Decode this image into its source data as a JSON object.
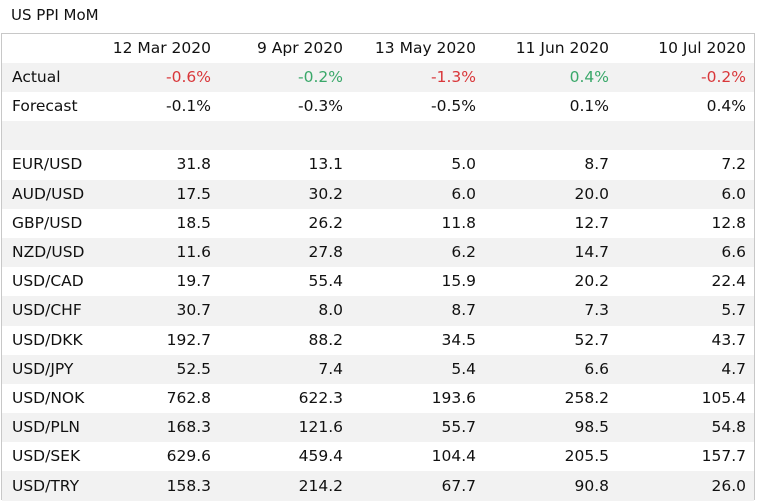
{
  "title": "US PPI MoM",
  "columns": [
    "12 Mar 2020",
    "9 Apr 2020",
    "13 May 2020",
    "11 Jun 2020",
    "10 Jul 2020"
  ],
  "actual": {
    "label": "Actual",
    "values": [
      "-0.6%",
      "-0.2%",
      "-1.3%",
      "0.4%",
      "-0.2%"
    ],
    "colors": [
      "red",
      "green",
      "red",
      "green",
      "red"
    ]
  },
  "forecast": {
    "label": "Forecast",
    "values": [
      "-0.1%",
      "-0.3%",
      "-0.5%",
      "0.1%",
      "0.4%"
    ]
  },
  "pairs": [
    {
      "label": "EUR/USD",
      "values": [
        "31.8",
        "13.1",
        "5.0",
        "8.7",
        "7.2"
      ]
    },
    {
      "label": "AUD/USD",
      "values": [
        "17.5",
        "30.2",
        "6.0",
        "20.0",
        "6.0"
      ]
    },
    {
      "label": "GBP/USD",
      "values": [
        "18.5",
        "26.2",
        "11.8",
        "12.7",
        "12.8"
      ]
    },
    {
      "label": "NZD/USD",
      "values": [
        "11.6",
        "27.8",
        "6.2",
        "14.7",
        "6.6"
      ]
    },
    {
      "label": "USD/CAD",
      "values": [
        "19.7",
        "55.4",
        "15.9",
        "20.2",
        "22.4"
      ]
    },
    {
      "label": "USD/CHF",
      "values": [
        "30.7",
        "8.0",
        "8.7",
        "7.3",
        "5.7"
      ]
    },
    {
      "label": "USD/DKK",
      "values": [
        "192.7",
        "88.2",
        "34.5",
        "52.7",
        "43.7"
      ]
    },
    {
      "label": "USD/JPY",
      "values": [
        "52.5",
        "7.4",
        "5.4",
        "6.6",
        "4.7"
      ]
    },
    {
      "label": "USD/NOK",
      "values": [
        "762.8",
        "622.3",
        "193.6",
        "258.2",
        "105.4"
      ]
    },
    {
      "label": "USD/PLN",
      "values": [
        "168.3",
        "121.6",
        "55.7",
        "98.5",
        "54.8"
      ]
    },
    {
      "label": "USD/SEK",
      "values": [
        "629.6",
        "459.4",
        "104.4",
        "205.5",
        "157.7"
      ]
    },
    {
      "label": "USD/TRY",
      "values": [
        "158.3",
        "214.2",
        "67.7",
        "90.8",
        "26.0"
      ]
    }
  ]
}
